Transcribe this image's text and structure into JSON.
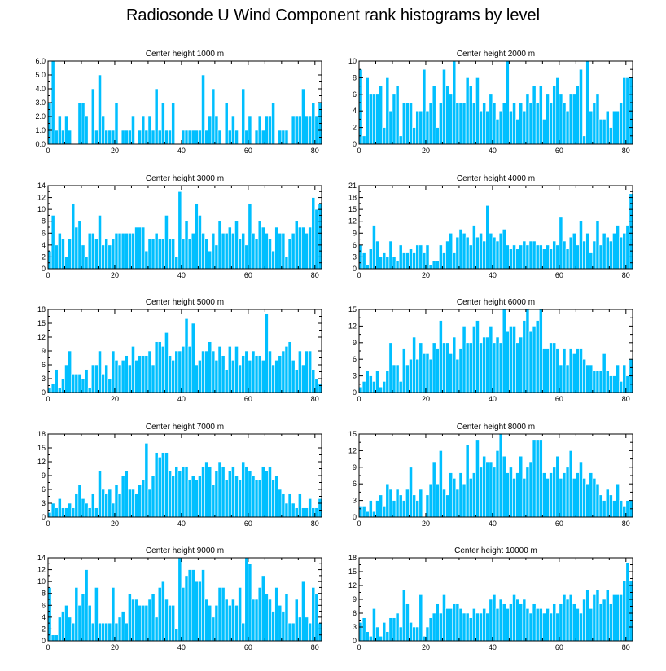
{
  "title": "Radiosonde U Wind Component rank histograms by level",
  "colors": {
    "bar": "#00BFFF",
    "bar_edge": "#FFFFFF",
    "axis": "#000000"
  },
  "chart_data": [
    {
      "type": "bar",
      "title": "Center height 1000 m",
      "xlim": [
        0,
        82
      ],
      "xticks": [
        0,
        20,
        40,
        60,
        80
      ],
      "xtick_labels": [
        "0",
        "20",
        "40",
        "60",
        "80"
      ],
      "ylim": [
        0,
        6
      ],
      "yticks": [
        0,
        1,
        2,
        3,
        4,
        5,
        6
      ],
      "ytick_labels": [
        "0.0",
        "1.0",
        "2.0",
        "3.0",
        "4.0",
        "5.0",
        "6.0"
      ],
      "values": [
        3,
        6,
        1,
        2,
        1,
        2,
        1,
        0,
        0,
        3,
        3,
        2,
        0,
        4,
        1,
        5,
        2,
        1,
        1,
        1,
        3,
        0,
        1,
        1,
        1,
        2,
        0,
        1,
        2,
        1,
        2,
        1,
        4,
        1,
        3,
        1,
        1,
        3,
        0,
        0,
        1,
        1,
        1,
        1,
        1,
        1,
        5,
        1,
        2,
        4,
        2,
        1,
        0,
        3,
        1,
        2,
        1,
        0,
        4,
        1,
        2,
        0,
        1,
        2,
        1,
        2,
        2,
        3,
        0,
        1,
        1,
        1,
        0,
        2,
        2,
        2,
        4,
        2,
        2,
        3,
        2,
        3
      ]
    },
    {
      "type": "bar",
      "title": "Center height 2000 m",
      "xlim": [
        0,
        82
      ],
      "xticks": [
        0,
        20,
        40,
        60,
        80
      ],
      "xtick_labels": [
        "0",
        "20",
        "40",
        "60",
        "80"
      ],
      "ylim": [
        0,
        10
      ],
      "yticks": [
        0,
        2,
        4,
        6,
        8,
        10
      ],
      "ytick_labels": [
        "0",
        "2",
        "4",
        "6",
        "8",
        "10"
      ],
      "values": [
        9,
        1,
        8,
        6,
        6,
        6,
        7,
        2,
        8,
        4,
        6,
        7,
        1,
        5,
        5,
        5,
        2,
        4,
        4,
        9,
        4,
        5,
        7,
        2,
        5,
        9,
        7,
        6,
        10,
        5,
        5,
        5,
        8,
        7,
        5,
        8,
        4,
        5,
        4,
        6,
        5,
        3,
        4,
        5,
        10,
        4,
        5,
        3,
        5,
        4,
        6,
        5,
        7,
        5,
        7,
        3,
        6,
        5,
        7,
        8,
        6,
        5,
        4,
        6,
        6,
        7,
        9,
        1,
        10,
        4,
        5,
        6,
        3,
        3,
        4,
        2,
        4,
        4,
        5,
        8,
        8,
        8
      ]
    },
    {
      "type": "bar",
      "title": "Center height 3000 m",
      "xlim": [
        0,
        82
      ],
      "xticks": [
        0,
        20,
        40,
        60,
        80
      ],
      "xtick_labels": [
        "0",
        "20",
        "40",
        "60",
        "80"
      ],
      "ylim": [
        0,
        14
      ],
      "yticks": [
        0,
        2,
        4,
        6,
        8,
        10,
        12,
        14
      ],
      "ytick_labels": [
        "0",
        "2",
        "4",
        "6",
        "8",
        "10",
        "12",
        "14"
      ],
      "values": [
        3,
        9,
        4,
        6,
        5,
        2,
        5,
        11,
        7,
        8,
        4,
        2,
        6,
        6,
        5,
        9,
        4,
        5,
        4,
        5,
        6,
        6,
        6,
        6,
        6,
        6,
        7,
        7,
        7,
        3,
        5,
        5,
        6,
        5,
        5,
        9,
        5,
        5,
        2,
        13,
        5,
        8,
        5,
        6,
        11,
        9,
        6,
        5,
        3,
        6,
        4,
        8,
        6,
        6,
        7,
        6,
        8,
        5,
        6,
        4,
        11,
        6,
        5,
        8,
        7,
        6,
        5,
        3,
        7,
        6,
        6,
        2,
        5,
        6,
        8,
        7,
        7,
        6,
        7,
        12,
        10,
        11
      ]
    },
    {
      "type": "bar",
      "title": "Center height 4000 m",
      "xlim": [
        0,
        82
      ],
      "xticks": [
        0,
        20,
        40,
        60,
        80
      ],
      "xtick_labels": [
        "0",
        "20",
        "40",
        "60",
        "80"
      ],
      "ylim": [
        0,
        21
      ],
      "yticks": [
        0,
        3,
        6,
        9,
        12,
        15,
        18,
        21
      ],
      "ytick_labels": [
        "0",
        "3",
        "6",
        "9",
        "12",
        "15",
        "18",
        "21"
      ],
      "values": [
        6,
        4,
        1,
        5,
        11,
        7,
        3,
        4,
        3,
        7,
        3,
        2,
        6,
        4,
        4,
        5,
        4,
        6,
        6,
        4,
        6,
        1,
        2,
        2,
        6,
        4,
        7,
        9,
        4,
        8,
        10,
        9,
        8,
        6,
        11,
        8,
        9,
        7,
        16,
        9,
        8,
        7,
        9,
        10,
        6,
        5,
        6,
        5,
        6,
        7,
        6,
        7,
        7,
        6,
        6,
        5,
        6,
        5,
        7,
        6,
        13,
        7,
        5,
        8,
        9,
        6,
        12,
        7,
        9,
        4,
        7,
        12,
        6,
        9,
        8,
        7,
        9,
        11,
        8,
        9,
        11,
        19
      ]
    },
    {
      "type": "bar",
      "title": "Center height 5000 m",
      "xlim": [
        0,
        82
      ],
      "xticks": [
        0,
        20,
        40,
        60,
        80
      ],
      "xtick_labels": [
        "0",
        "20",
        "40",
        "60",
        "80"
      ],
      "ylim": [
        0,
        18
      ],
      "yticks": [
        0,
        3,
        6,
        9,
        12,
        15,
        18
      ],
      "ytick_labels": [
        "0",
        "3",
        "6",
        "9",
        "12",
        "15",
        "18"
      ],
      "values": [
        1,
        2,
        5,
        1,
        3,
        6,
        9,
        4,
        4,
        4,
        3,
        5,
        1,
        6,
        6,
        9,
        4,
        6,
        3,
        9,
        7,
        6,
        7,
        8,
        6,
        10,
        7,
        8,
        8,
        8,
        9,
        6,
        11,
        11,
        10,
        13,
        8,
        7,
        9,
        9,
        10,
        16,
        10,
        15,
        6,
        7,
        9,
        9,
        11,
        9,
        7,
        10,
        8,
        5,
        10,
        7,
        10,
        6,
        8,
        9,
        7,
        9,
        8,
        8,
        7,
        17,
        9,
        6,
        7,
        8,
        9,
        10,
        11,
        7,
        5,
        9,
        6,
        9,
        9,
        5,
        3,
        2
      ]
    },
    {
      "type": "bar",
      "title": "Center height 6000 m",
      "xlim": [
        0,
        82
      ],
      "xticks": [
        0,
        20,
        40,
        60,
        80
      ],
      "xtick_labels": [
        "0",
        "20",
        "40",
        "60",
        "80"
      ],
      "ylim": [
        0,
        15
      ],
      "yticks": [
        0,
        3,
        6,
        9,
        12,
        15
      ],
      "ytick_labels": [
        "0",
        "3",
        "6",
        "9",
        "12",
        "15"
      ],
      "values": [
        1,
        2,
        4,
        3,
        2,
        4,
        1,
        2,
        4,
        9,
        5,
        5,
        2,
        8,
        5,
        6,
        10,
        6,
        9,
        7,
        7,
        6,
        9,
        8,
        13,
        9,
        9,
        7,
        10,
        6,
        8,
        12,
        9,
        9,
        12,
        13,
        9,
        10,
        10,
        12,
        9,
        10,
        9,
        15,
        11,
        12,
        12,
        9,
        10,
        13,
        15,
        11,
        12,
        13,
        15,
        8,
        8,
        9,
        9,
        8,
        5,
        8,
        5,
        8,
        7,
        8,
        8,
        6,
        5,
        5,
        4,
        4,
        4,
        7,
        4,
        3,
        3,
        5,
        2,
        5,
        3,
        6
      ]
    },
    {
      "type": "bar",
      "title": "Center height 7000 m",
      "xlim": [
        0,
        82
      ],
      "xticks": [
        0,
        20,
        40,
        60,
        80
      ],
      "xtick_labels": [
        "0",
        "20",
        "40",
        "60",
        "80"
      ],
      "ylim": [
        0,
        18
      ],
      "yticks": [
        0,
        3,
        6,
        9,
        12,
        15,
        18
      ],
      "ytick_labels": [
        "0",
        "3",
        "6",
        "9",
        "12",
        "15",
        "18"
      ],
      "values": [
        1,
        3,
        2,
        4,
        2,
        2,
        3,
        2,
        5,
        7,
        4,
        3,
        2,
        5,
        2,
        10,
        6,
        5,
        6,
        3,
        7,
        5,
        9,
        10,
        6,
        6,
        5,
        7,
        8,
        16,
        6,
        9,
        14,
        13,
        14,
        14,
        10,
        9,
        11,
        10,
        11,
        11,
        8,
        9,
        8,
        9,
        11,
        12,
        11,
        7,
        10,
        12,
        11,
        8,
        10,
        11,
        9,
        8,
        12,
        11,
        10,
        9,
        8,
        8,
        11,
        10,
        11,
        8,
        9,
        6,
        5,
        3,
        5,
        3,
        2,
        5,
        2,
        2,
        4,
        2,
        2,
        4
      ]
    },
    {
      "type": "bar",
      "title": "Center height 8000 m",
      "xlim": [
        0,
        82
      ],
      "xticks": [
        0,
        20,
        40,
        60,
        80
      ],
      "xtick_labels": [
        "0",
        "20",
        "40",
        "60",
        "80"
      ],
      "ylim": [
        0,
        15
      ],
      "yticks": [
        0,
        3,
        6,
        9,
        12,
        15
      ],
      "ytick_labels": [
        "0",
        "3",
        "6",
        "9",
        "12",
        "15"
      ],
      "values": [
        2,
        2,
        1,
        3,
        1,
        3,
        4,
        2,
        6,
        5,
        3,
        5,
        4,
        3,
        5,
        9,
        4,
        3,
        5,
        0,
        4,
        6,
        10,
        6,
        12,
        5,
        4,
        8,
        7,
        5,
        8,
        6,
        13,
        7,
        8,
        14,
        9,
        11,
        10,
        10,
        9,
        12,
        15,
        11,
        8,
        9,
        7,
        8,
        11,
        7,
        9,
        10,
        14,
        14,
        14,
        8,
        7,
        8,
        9,
        11,
        7,
        8,
        9,
        12,
        7,
        8,
        10,
        7,
        6,
        8,
        7,
        6,
        4,
        3,
        5,
        4,
        3,
        6,
        3,
        2,
        3,
        3
      ]
    },
    {
      "type": "bar",
      "title": "Center height 9000 m",
      "xlim": [
        0,
        82
      ],
      "xticks": [
        0,
        20,
        40,
        60,
        80
      ],
      "xtick_labels": [
        "0",
        "20",
        "40",
        "60",
        "80"
      ],
      "ylim": [
        0,
        14
      ],
      "yticks": [
        0,
        2,
        4,
        6,
        8,
        10,
        12,
        14
      ],
      "ytick_labels": [
        "0",
        "2",
        "4",
        "6",
        "8",
        "10",
        "12",
        "14"
      ],
      "values": [
        9,
        1,
        1,
        4,
        5,
        6,
        4,
        3,
        9,
        6,
        8,
        12,
        6,
        3,
        9,
        3,
        3,
        3,
        3,
        9,
        3,
        4,
        5,
        3,
        8,
        7,
        7,
        6,
        6,
        6,
        7,
        8,
        4,
        9,
        10,
        7,
        6,
        6,
        2,
        14,
        9,
        11,
        12,
        12,
        10,
        10,
        12,
        7,
        6,
        4,
        6,
        9,
        9,
        7,
        6,
        7,
        6,
        9,
        3,
        14,
        13,
        7,
        7,
        9,
        11,
        8,
        7,
        5,
        9,
        6,
        5,
        8,
        3,
        3,
        7,
        4,
        10,
        4,
        3,
        9,
        8,
        3
      ]
    },
    {
      "type": "bar",
      "title": "Center height 10000 m",
      "xlim": [
        0,
        82
      ],
      "xticks": [
        0,
        20,
        40,
        60,
        80
      ],
      "xtick_labels": [
        "0",
        "20",
        "40",
        "60",
        "80"
      ],
      "ylim": [
        0,
        18
      ],
      "yticks": [
        0,
        3,
        6,
        9,
        12,
        15,
        18
      ],
      "ytick_labels": [
        "0",
        "3",
        "6",
        "9",
        "12",
        "15",
        "18"
      ],
      "values": [
        4,
        5,
        2,
        1,
        7,
        3,
        1,
        4,
        2,
        5,
        5,
        6,
        3,
        11,
        8,
        4,
        3,
        3,
        10,
        1,
        3,
        5,
        6,
        8,
        6,
        10,
        7,
        7,
        8,
        8,
        7,
        6,
        6,
        5,
        7,
        6,
        6,
        7,
        6,
        9,
        10,
        7,
        9,
        8,
        7,
        8,
        10,
        9,
        8,
        9,
        7,
        6,
        8,
        7,
        7,
        6,
        7,
        6,
        8,
        6,
        8,
        10,
        9,
        10,
        8,
        7,
        6,
        9,
        11,
        7,
        10,
        11,
        8,
        9,
        11,
        8,
        10,
        10,
        10,
        13,
        17,
        13
      ]
    }
  ]
}
